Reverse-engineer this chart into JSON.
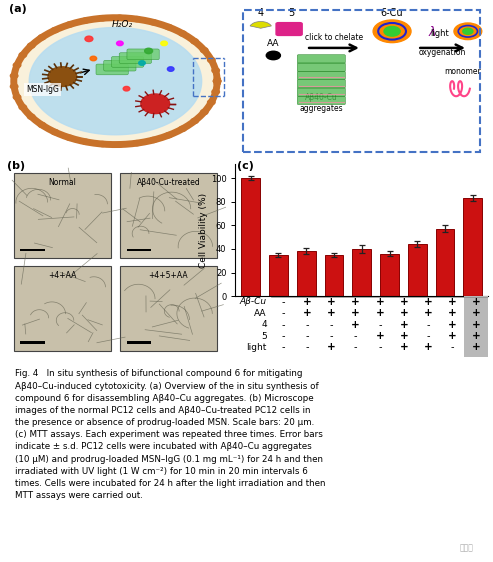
{
  "bar_values": [
    100,
    35,
    38,
    35,
    40,
    36,
    44,
    57,
    83
  ],
  "bar_errors": [
    2.0,
    2.0,
    2.5,
    2.0,
    3.0,
    2.0,
    2.5,
    3.0,
    2.5
  ],
  "bar_color": "#cc1111",
  "bar_edge_color": "#880000",
  "ylabel": "Cell Viability (%)",
  "ylim": [
    0,
    112
  ],
  "yticks": [
    0,
    20,
    40,
    60,
    80,
    100
  ],
  "table_rows": [
    "Aβ-Cu",
    "AA",
    "4",
    "5",
    "light"
  ],
  "table_data": [
    [
      "-",
      "+",
      "+",
      "+",
      "+",
      "+",
      "+",
      "+",
      "+"
    ],
    [
      "-",
      "+",
      "+",
      "+",
      "+",
      "+",
      "+",
      "+",
      "+"
    ],
    [
      "-",
      "-",
      "-",
      "+",
      "-",
      "+",
      "-",
      "+",
      "+"
    ],
    [
      "-",
      "-",
      "-",
      "-",
      "+",
      "+",
      "-",
      "+",
      "+"
    ],
    [
      "-",
      "-",
      "+",
      "-",
      "-",
      "+",
      "+",
      "-",
      "+"
    ]
  ],
  "caption_text": "Fig. 4   In situ synthesis of bifunctional compound 6 for mitigating\nAβ40–Cu-induced cytotoxicity. (a) Overview of the in situ synthesis of\ncompound 6 for disassembling Aβ40–Cu aggregates. (b) Microscope\nimages of the normal PC12 cells and Aβ40–Cu-treated PC12 cells in\nthe presence or absence of prodrug-loaded MSN. Scale bars: 20 μm.\n(c) MTT assays. Each experiment was repeated three times. Error bars\nindicate ± s.d. PC12 cells were incubated with Aβ40–Cu aggregates\n(10 μM) and prodrug-loaded MSN–IgG (0.1 mg mL⁻¹) for 24 h and then\nirradiated with UV light (1 W cm⁻²) for 10 min in 20 min intervals 6\ntimes. Cells were incubated for 24 h after the light irradiation and then\nMTT assays were carried out.",
  "micro_labels": [
    "Normal",
    "Aβ40-Cu-treated",
    "+4+AA",
    "+4+5+AA"
  ],
  "cell_outer_color": "#c8722a",
  "cell_inner_color": "#b8ddf0",
  "cell_bg_color": "#ddeef8",
  "msn_color": "#8B5010",
  "bg_white": "#ffffff",
  "gray_col": "#b8b8b8",
  "micro_bg": "#c8c0aa"
}
